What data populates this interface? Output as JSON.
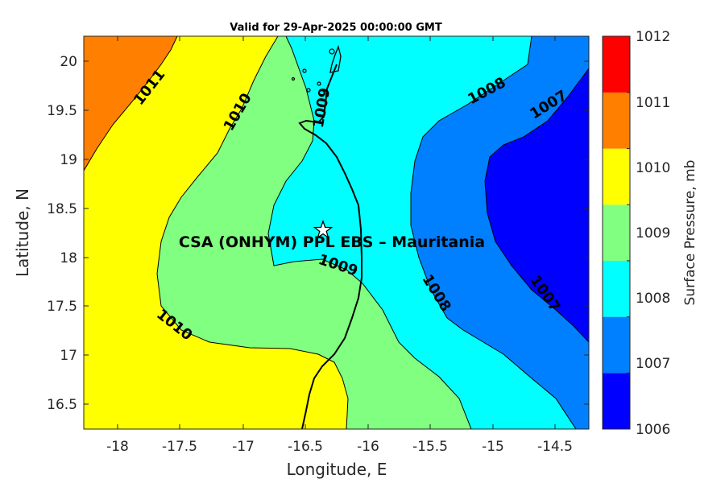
{
  "title": "Valid for 29-Apr-2025 00:00:00 GMT",
  "xlabel": "Longitude, E",
  "ylabel": "Latitude, N",
  "x_ticks": [
    "-18",
    "-17.5",
    "-17",
    "-16.5",
    "-16",
    "-15.5",
    "-15",
    "-14.5"
  ],
  "y_ticks": [
    "20",
    "19.5",
    "19",
    "18.5",
    "18",
    "17.5",
    "17",
    "16.5"
  ],
  "station": {
    "label": "CSA (ONHYM) PPL EBS  – Mauritania",
    "lon": -16.33,
    "lat": 18.28
  },
  "colorbar": {
    "label": "Surface Pressure, mb",
    "levels": [
      "1012",
      "1011",
      "1010",
      "1009",
      "1008",
      "1007",
      "1006"
    ],
    "colors": [
      "#0000ff",
      "#0080ff",
      "#00ffff",
      "#80ff80",
      "#ffff00",
      "#ff8000",
      "#ff0000"
    ]
  },
  "contour_labels": {
    "c1011": "1011",
    "c1010a": "1010",
    "c1010b": "1010",
    "c1009a": "1009",
    "c1009b": "1009",
    "c1008a": "1008",
    "c1008b": "1008",
    "c1007a": "1007",
    "c1007b": "1007"
  },
  "chart_data": {
    "type": "heatmap",
    "title": "Valid for 29-Apr-2025 00:00:00 GMT",
    "xlabel": "Longitude, E",
    "ylabel": "Latitude, N",
    "xlim": [
      -18.35,
      -14.2
    ],
    "ylim": [
      16.25,
      20.25
    ],
    "colorbar_range": [
      1006,
      1012
    ],
    "colorbar_label": "Surface Pressure, mb",
    "contour_levels": [
      1007,
      1008,
      1009,
      1010,
      1011
    ]
  }
}
